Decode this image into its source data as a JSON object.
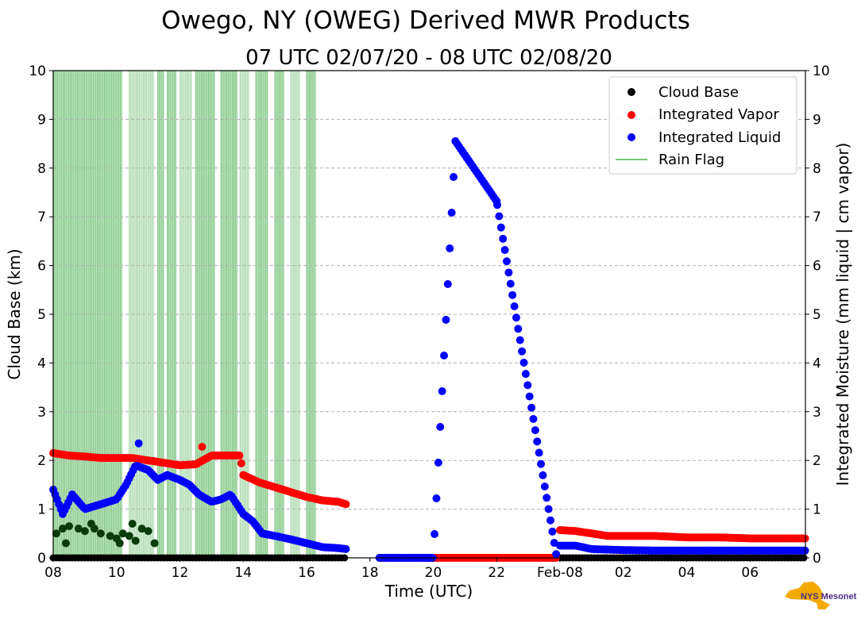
{
  "chart_data": {
    "type": "scatter",
    "title": "Owego, NY (OWEG) Derived MWR Products",
    "subtitle": "07 UTC 02/07/20 - 08 UTC 02/08/20",
    "xlabel": "Time (UTC)",
    "ylabel_left": "Cloud Base (km)",
    "ylabel_right": "Integrated Moisture (mm liquid | cm vapor)",
    "x_units": "hours since 08 UTC Feb-07",
    "xlim": [
      0,
      23.75
    ],
    "ylim": [
      0,
      10
    ],
    "grid": "horizontal dashed",
    "legend_position": "top-right",
    "x_ticks": [
      {
        "x": 0,
        "label": "08"
      },
      {
        "x": 2,
        "label": "10"
      },
      {
        "x": 4,
        "label": "12"
      },
      {
        "x": 6,
        "label": "14"
      },
      {
        "x": 8,
        "label": "16"
      },
      {
        "x": 10,
        "label": "18"
      },
      {
        "x": 12,
        "label": "20"
      },
      {
        "x": 14,
        "label": "22"
      },
      {
        "x": 16,
        "label": "Feb-08"
      },
      {
        "x": 18,
        "label": "02"
      },
      {
        "x": 20,
        "label": "04"
      },
      {
        "x": 22,
        "label": "06"
      }
    ],
    "y_ticks": [
      "0",
      "1",
      "2",
      "3",
      "4",
      "5",
      "6",
      "7",
      "8",
      "9",
      "10"
    ],
    "legend": [
      {
        "label": "Cloud Base",
        "color": "#000000",
        "kind": "marker"
      },
      {
        "label": "Integrated Vapor",
        "color": "#ff0000",
        "kind": "marker"
      },
      {
        "label": "Integrated Liquid",
        "color": "#0000ff",
        "kind": "marker"
      },
      {
        "label": "Rain Flag",
        "color": "#4caf50",
        "kind": "line"
      }
    ],
    "series": [
      {
        "name": "Integrated Vapor",
        "color": "#ff0000",
        "x": [
          0,
          0.5,
          1,
          1.5,
          2,
          2.5,
          3,
          3.5,
          4,
          4.5,
          5,
          5.5,
          5.9,
          6,
          6.5,
          7,
          7.5,
          8,
          8.5,
          9,
          9.25,
          10.3,
          12,
          14,
          15.9,
          16,
          16.5,
          17,
          17.5,
          18,
          19,
          20,
          21,
          22,
          23,
          23.75
        ],
        "y": [
          2.15,
          2.1,
          2.08,
          2.05,
          2.05,
          2.05,
          2.0,
          1.95,
          1.9,
          1.92,
          2.1,
          2.1,
          2.1,
          1.7,
          1.55,
          1.45,
          1.35,
          1.25,
          1.18,
          1.15,
          1.1,
          0,
          0,
          0,
          0,
          0.57,
          0.55,
          0.5,
          0.45,
          0.45,
          0.45,
          0.42,
          0.42,
          0.4,
          0.4,
          0.4
        ]
      },
      {
        "name": "Integrated Liquid",
        "color": "#0000ff",
        "x": [
          0,
          0.3,
          0.6,
          1,
          1.5,
          2,
          2.3,
          2.6,
          3,
          3.3,
          3.6,
          4,
          4.3,
          4.6,
          5,
          5.3,
          5.6,
          6,
          6.3,
          6.6,
          7,
          7.5,
          8,
          8.5,
          9,
          9.25,
          10.3,
          12,
          12.7,
          14,
          15.9,
          16,
          16.5,
          17,
          18,
          19,
          20,
          21,
          22,
          23,
          23.75
        ],
        "y": [
          1.4,
          0.9,
          1.3,
          1.0,
          1.1,
          1.2,
          1.5,
          1.9,
          1.8,
          1.6,
          1.7,
          1.6,
          1.5,
          1.3,
          1.15,
          1.2,
          1.3,
          0.9,
          0.75,
          0.5,
          0.45,
          0.38,
          0.3,
          0.22,
          0.2,
          0.18,
          0,
          0,
          8.55,
          7.32,
          0,
          0.25,
          0.25,
          0.18,
          0.16,
          0.15,
          0.15,
          0.15,
          0.15,
          0.15,
          0.15
        ]
      },
      {
        "name": "Cloud Base",
        "color": "#000000",
        "x": [
          0.1,
          0.3,
          0.5,
          0.8,
          1.0,
          1.3,
          1.5,
          1.8,
          2.0,
          2.2,
          2.4,
          2.6,
          2.8,
          3.0,
          3.2,
          0.4,
          1.2,
          2.1,
          2.5
        ],
        "y": [
          0.5,
          0.6,
          0.65,
          0.6,
          0.55,
          0.6,
          0.5,
          0.45,
          0.4,
          0.5,
          0.45,
          0.35,
          0.6,
          0.55,
          0.3,
          0.3,
          0.7,
          0.3,
          0.7
        ]
      }
    ],
    "rain_flag_intervals": [
      [
        0.0,
        2.2
      ],
      [
        2.4,
        3.2
      ],
      [
        3.3,
        3.5
      ],
      [
        3.6,
        3.9
      ],
      [
        4.0,
        4.4
      ],
      [
        4.5,
        5.1
      ],
      [
        5.3,
        5.8
      ],
      [
        5.9,
        6.2
      ],
      [
        6.4,
        6.8
      ],
      [
        7.0,
        7.3
      ],
      [
        7.5,
        7.8
      ],
      [
        8.0,
        8.3
      ]
    ],
    "logo_text": "NYS Mesonet"
  }
}
